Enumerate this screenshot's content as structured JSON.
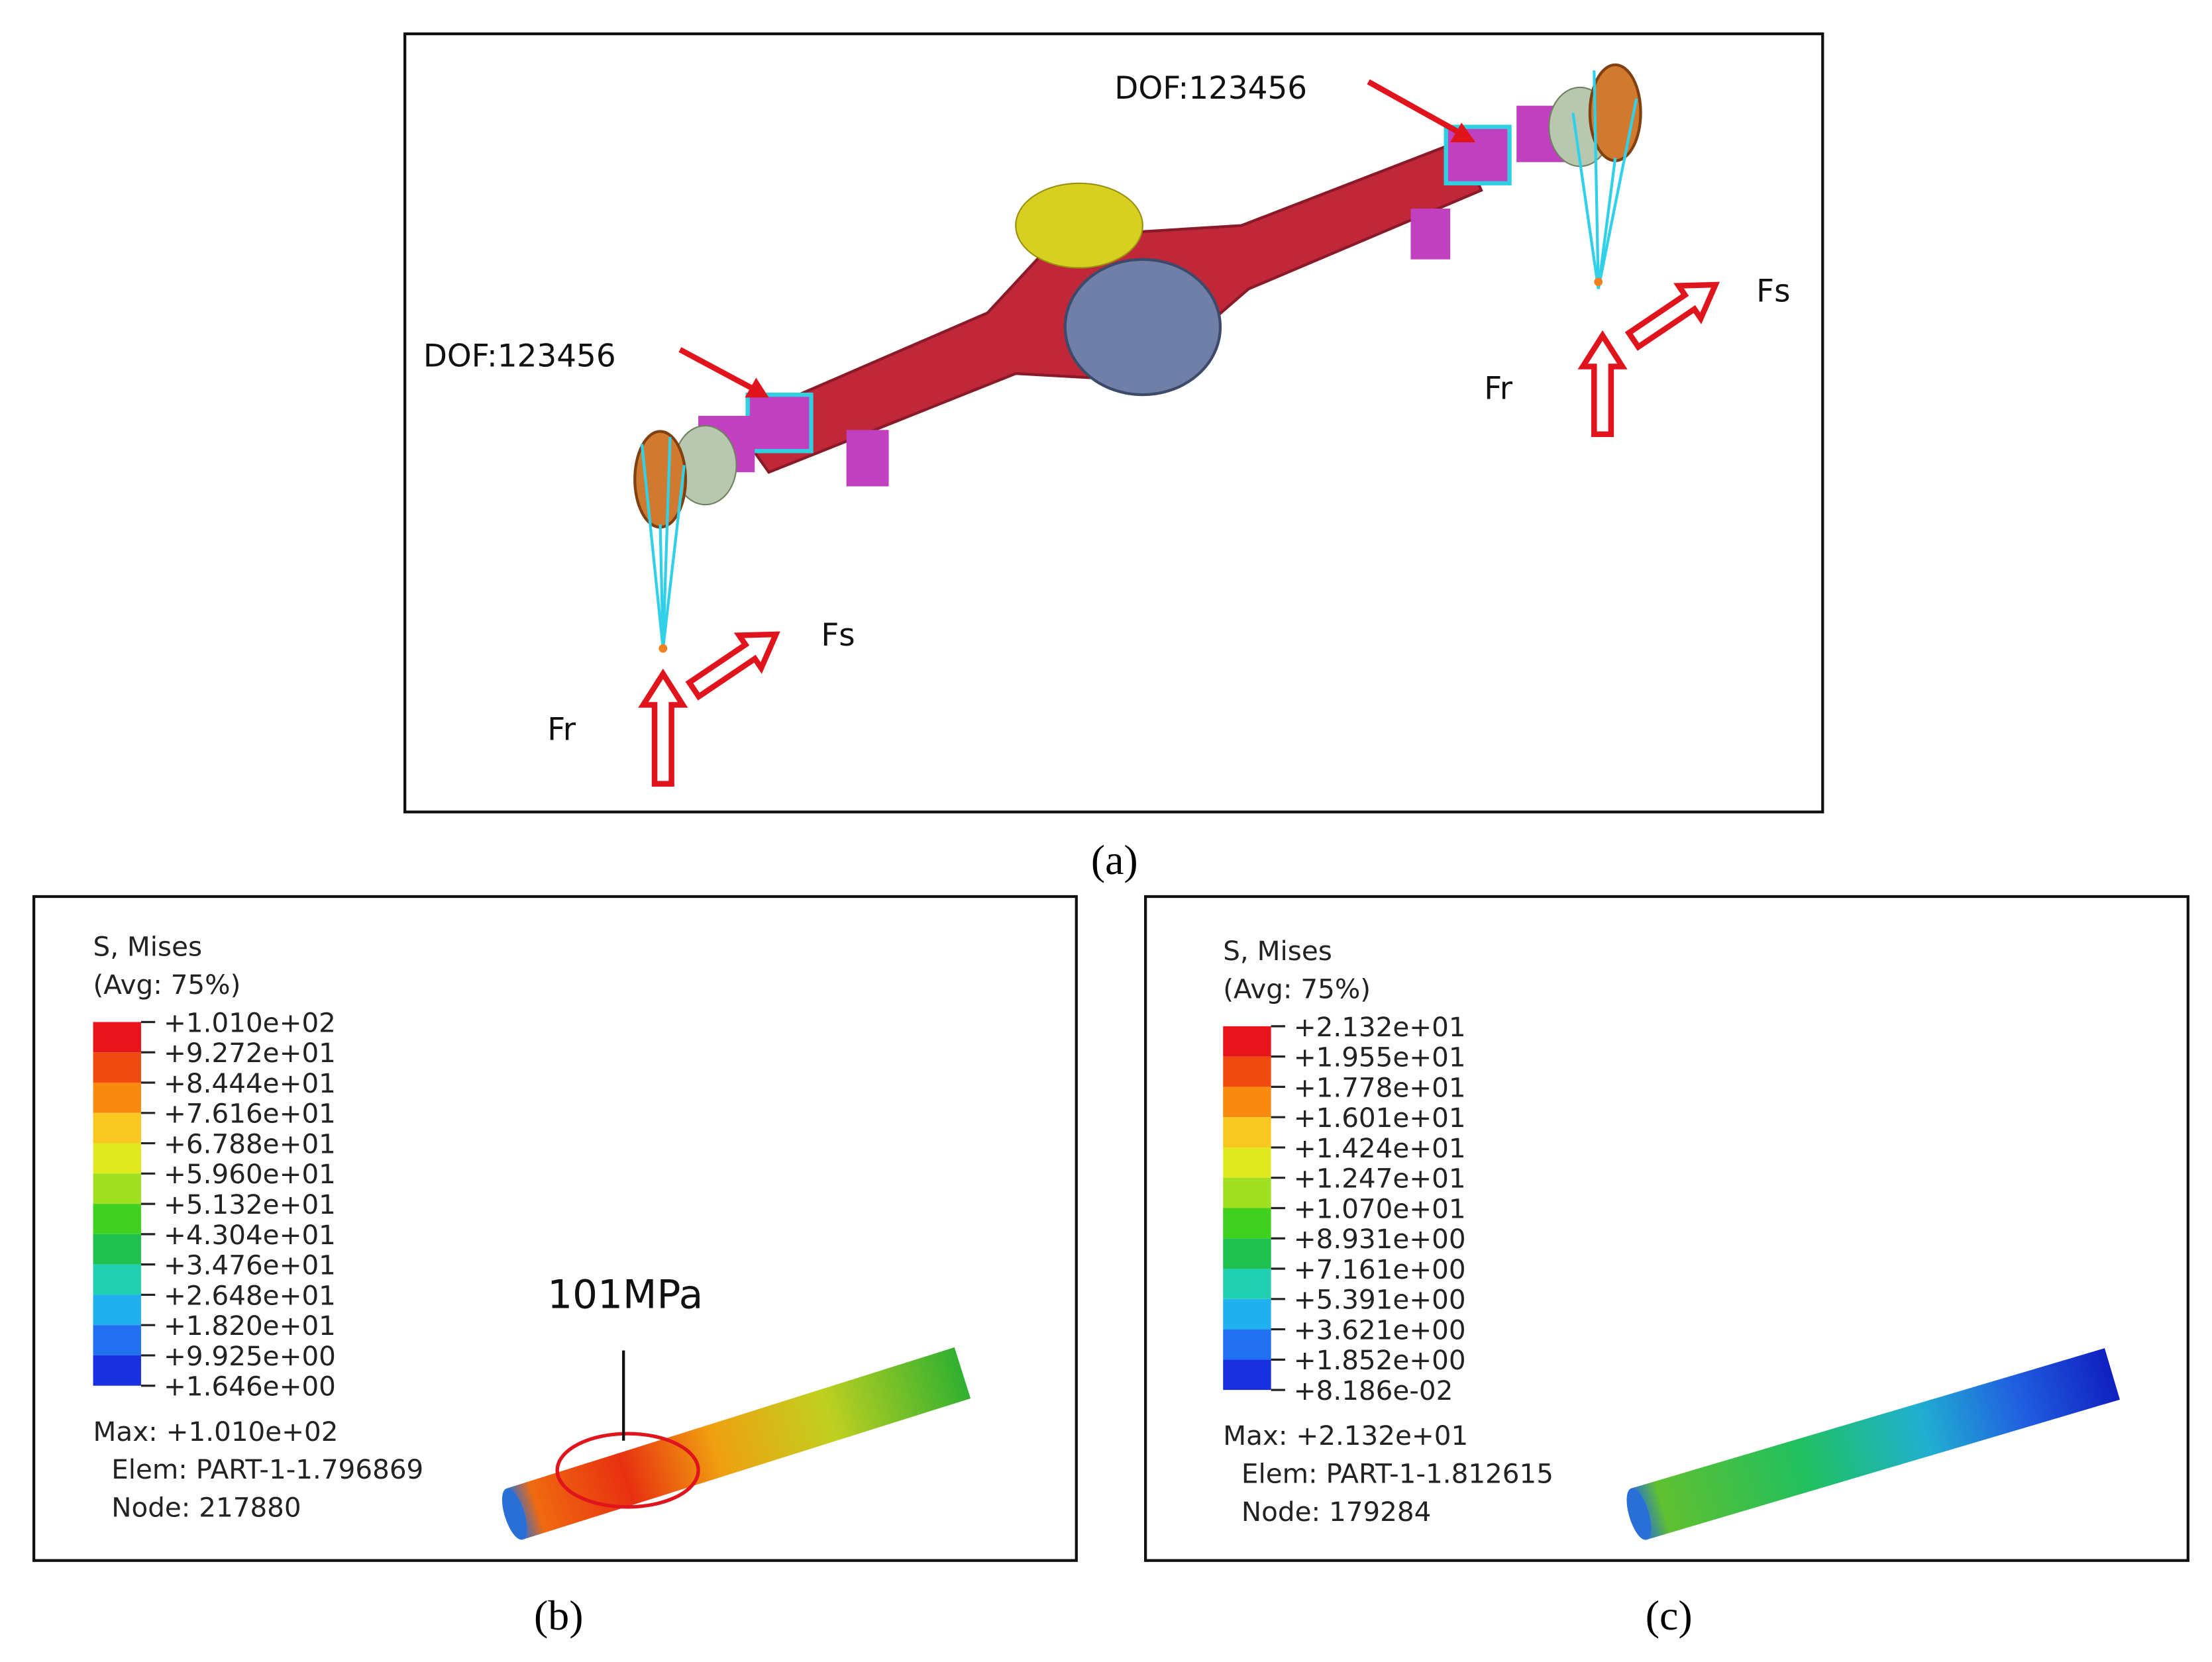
{
  "figure": {
    "panel_a": {
      "labels": {
        "dof_left": "DOF:123456",
        "dof_right": "DOF:123456",
        "fs_left": "Fs",
        "fr_left": "Fr",
        "fs_right": "Fs",
        "fr_right": "Fr"
      },
      "caption": "(a)"
    },
    "panel_b": {
      "legend_title": "S, Mises",
      "legend_subtitle": "(Avg: 75%)",
      "legend_values": [
        "+1.010e+02",
        "+9.272e+01",
        "+8.444e+01",
        "+7.616e+01",
        "+6.788e+01",
        "+5.960e+01",
        "+5.132e+01",
        "+4.304e+01",
        "+3.476e+01",
        "+2.648e+01",
        "+1.820e+01",
        "+9.925e+00",
        "+1.646e+00"
      ],
      "max": "Max: +1.010e+02",
      "elem": "Elem: PART-1-1.796869",
      "node": "Node: 217880",
      "annotation": "101MPa",
      "caption": "(b)"
    },
    "panel_c": {
      "legend_title": "S, Mises",
      "legend_subtitle": "(Avg: 75%)",
      "legend_values": [
        "+2.132e+01",
        "+1.955e+01",
        "+1.778e+01",
        "+1.601e+01",
        "+1.424e+01",
        "+1.247e+01",
        "+1.070e+01",
        "+8.931e+00",
        "+7.161e+00",
        "+5.391e+00",
        "+3.621e+00",
        "+1.852e+00",
        "+8.186e-02"
      ],
      "max": "Max: +2.132e+01",
      "elem": "Elem: PART-1-1.812615",
      "node": "Node: 179284",
      "caption": "(c)"
    }
  }
}
